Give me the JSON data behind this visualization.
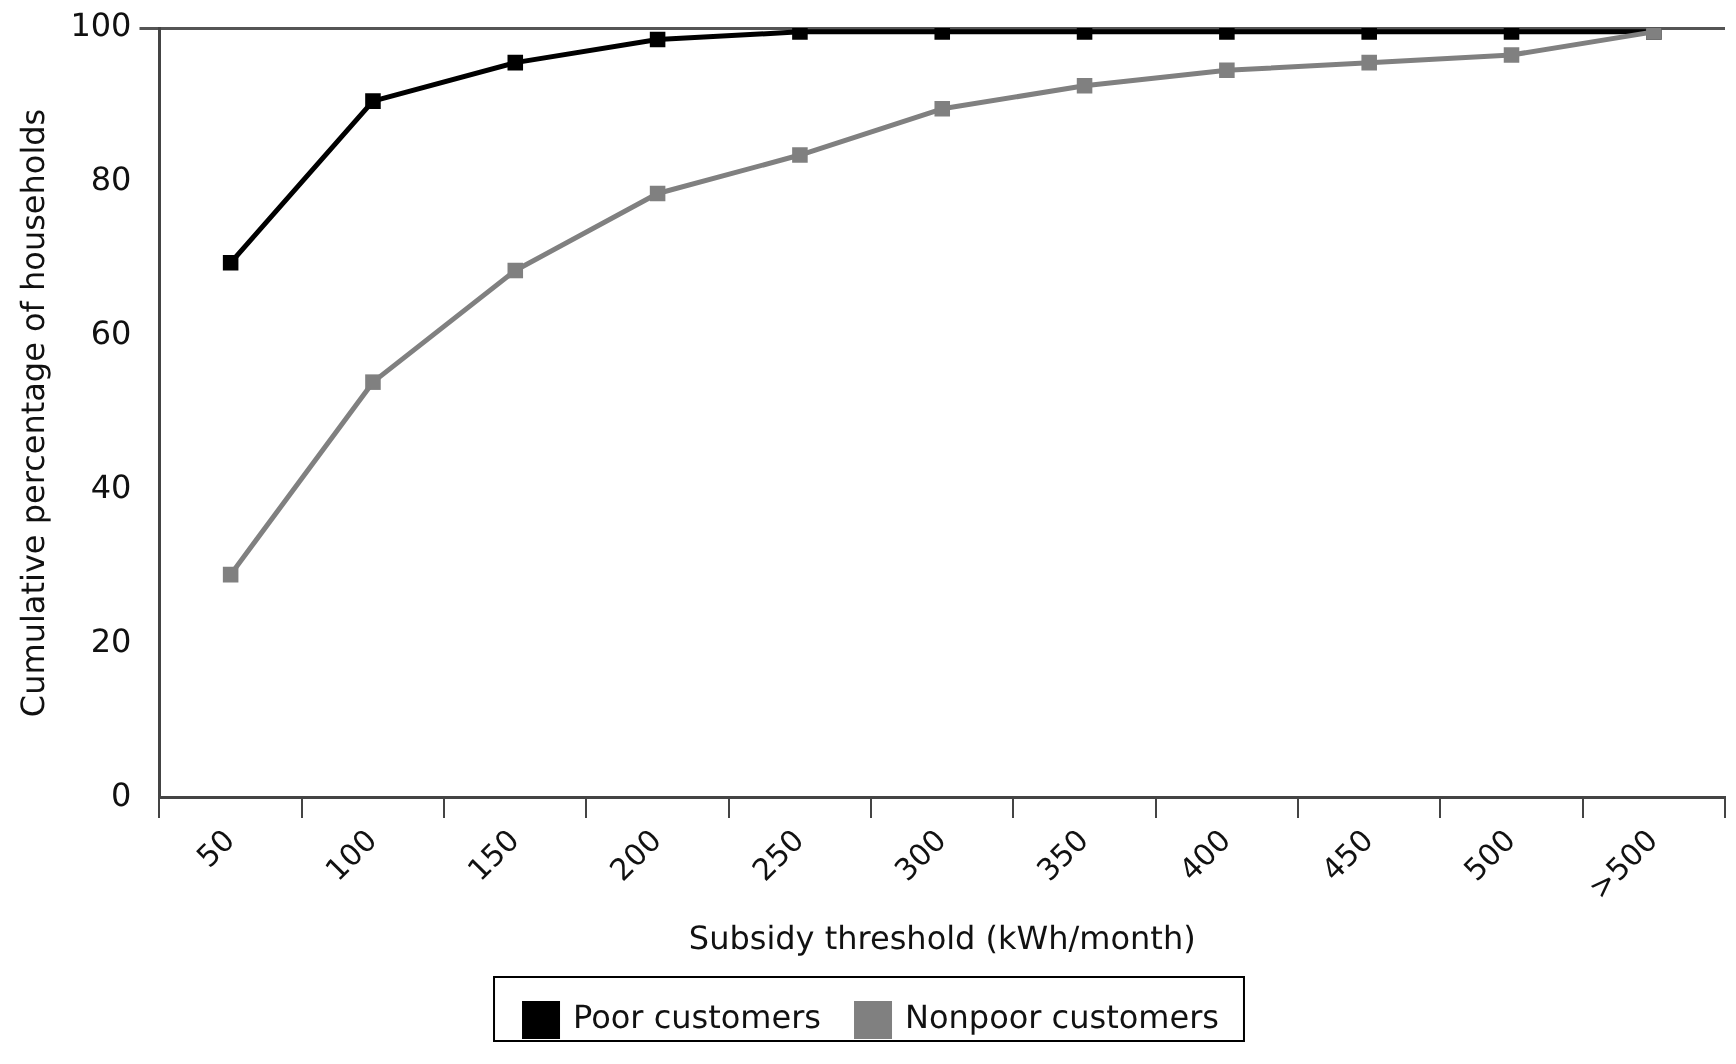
{
  "chart_data": {
    "type": "line",
    "xlabel": "Subsidy threshold (kWh/month)",
    "ylabel": "Cumulative percentage of households",
    "categories": [
      "50",
      "100",
      "150",
      "200",
      "250",
      "300",
      "350",
      "400",
      "450",
      "500",
      ">500"
    ],
    "series": [
      {
        "name": "Poor customers",
        "color": "#000000",
        "values": [
          69.5,
          90.5,
          95.5,
          98.5,
          99.5,
          99.5,
          99.5,
          99.5,
          99.5,
          99.5,
          99.5
        ]
      },
      {
        "name": "Nonpoor customers",
        "color": "#808080",
        "values": [
          29,
          54,
          68.5,
          78.5,
          83.5,
          89.5,
          92.5,
          94.5,
          95.5,
          96.5,
          99.5
        ]
      }
    ],
    "ylim": [
      0,
      100
    ],
    "yticks": [
      0,
      20,
      40,
      60,
      80,
      100
    ],
    "grid": false,
    "legend": "bottom",
    "marker": "square",
    "line_style": "solid"
  }
}
